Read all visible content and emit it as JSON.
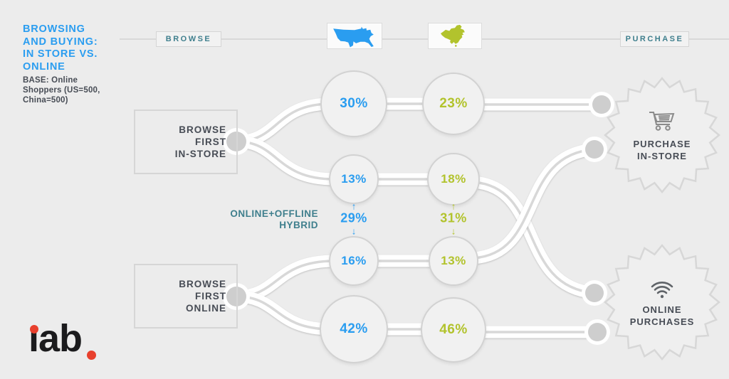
{
  "colors": {
    "background": "#ececec",
    "blue": "#2a9df0",
    "green": "#b2c32d",
    "teal": "#3f7f8d",
    "dark_text": "#474c55",
    "logo_black": "#1b1b1d",
    "logo_red": "#e8402d",
    "ribbon_white": "#ffffff",
    "line_gray": "#d8d8d8"
  },
  "header": {
    "title_lines": [
      "BROWSING",
      "AND BUYING:",
      "IN STORE VS.",
      "ONLINE"
    ],
    "base_lines": [
      "BASE: Online",
      "Shoppers (US=500,",
      "China=500)"
    ],
    "browse_label": "BROWSE",
    "purchase_label": "PURCHASE",
    "flags": [
      {
        "icon": "us-map",
        "country": "United States",
        "color": "#2a9df0"
      },
      {
        "icon": "china-map",
        "country": "China",
        "color": "#b2c32d"
      }
    ]
  },
  "sources": [
    {
      "lines": [
        "BROWSE",
        "FIRST",
        "IN-STORE"
      ]
    },
    {
      "lines": [
        "BROWSE",
        "FIRST",
        "ONLINE"
      ]
    }
  ],
  "hybrid_label_lines": [
    "ONLINE+OFFLINE",
    "HYBRID"
  ],
  "targets": [
    {
      "lines": [
        "PURCHASE",
        "IN-STORE"
      ],
      "icon": "shopping-cart"
    },
    {
      "lines": [
        "ONLINE",
        "PURCHASES"
      ],
      "icon": "wifi"
    }
  ],
  "icons": {
    "up_arrow": "↑",
    "down_arrow": "↓"
  },
  "logo": {
    "label": "iab.",
    "stem": "ı",
    "rest": "ab"
  },
  "chart_data": {
    "type": "sankey",
    "title": "Browsing and Buying: In Store vs. Online",
    "base": "Online Shoppers (US=500, China=500)",
    "stage_labels": [
      "BROWSE",
      "PURCHASE"
    ],
    "sources": [
      "Browse first in-store",
      "Browse first online"
    ],
    "targets": [
      "Purchase in-store",
      "Online purchases"
    ],
    "series": [
      {
        "name": "US",
        "color": "#2a9df0",
        "flows": [
          {
            "from": "Browse first in-store",
            "to": "Purchase in-store",
            "path": "direct",
            "value": 30,
            "display": "30%"
          },
          {
            "from": "Browse first in-store",
            "to": "Online purchases",
            "path": "online+offline hybrid",
            "value": 13,
            "display": "13%"
          },
          {
            "from": "Browse first online",
            "to": "Purchase in-store",
            "path": "online+offline hybrid",
            "value": 16,
            "display": "16%"
          },
          {
            "from": "Browse first online",
            "to": "Online purchases",
            "path": "direct",
            "value": 42,
            "display": "42%"
          }
        ],
        "hybrid_total": 29,
        "hybrid_display": "29%"
      },
      {
        "name": "China",
        "color": "#b2c32d",
        "flows": [
          {
            "from": "Browse first in-store",
            "to": "Purchase in-store",
            "path": "direct",
            "value": 23,
            "display": "23%"
          },
          {
            "from": "Browse first in-store",
            "to": "Online purchases",
            "path": "online+offline hybrid",
            "value": 18,
            "display": "18%"
          },
          {
            "from": "Browse first online",
            "to": "Purchase in-store",
            "path": "online+offline hybrid",
            "value": 13,
            "display": "13%"
          },
          {
            "from": "Browse first online",
            "to": "Online purchases",
            "path": "direct",
            "value": 46,
            "display": "46%"
          }
        ],
        "hybrid_total": 31,
        "hybrid_display": "31%"
      }
    ]
  }
}
